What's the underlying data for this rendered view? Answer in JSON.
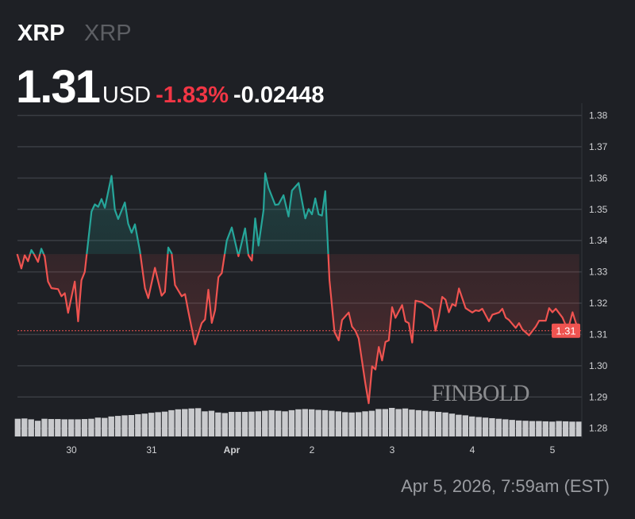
{
  "header": {
    "symbol": "XRP",
    "name": "XRP",
    "price": "1.31",
    "currency": "USD",
    "change_percent": "-1.83%",
    "change_value": "-0.02448"
  },
  "timestamp": "Apr 5, 2026, 7:59am (EST)",
  "watermark": "FINBOLD",
  "colors": {
    "up": "#26a69a",
    "down": "#ef5350",
    "negative_text": "#f23645",
    "background": "#1e2025"
  },
  "chart_data": {
    "type": "line",
    "baseline_price": 1.3357,
    "current_price": 1.3112,
    "current_price_label": "1.31",
    "ylim": [
      1.28,
      1.38
    ],
    "y_ticks": [
      "1.28",
      "1.29",
      "1.30",
      "1.31",
      "1.32",
      "1.33",
      "1.34",
      "1.35",
      "1.36",
      "1.37",
      "1.38"
    ],
    "y_tick_values": [
      1.28,
      1.29,
      1.3,
      1.31,
      1.32,
      1.33,
      1.34,
      1.35,
      1.36,
      1.37,
      1.38
    ],
    "x_ticks": [
      {
        "label": "30",
        "date": "2026-03-30T00:00"
      },
      {
        "label": "31",
        "date": "2026-03-31T00:00"
      },
      {
        "label": "Apr",
        "date": "2026-04-01T00:00"
      },
      {
        "label": "2",
        "date": "2026-04-02T00:00"
      },
      {
        "label": "3",
        "date": "2026-04-03T00:00"
      },
      {
        "label": "4",
        "date": "2026-04-04T00:00"
      },
      {
        "label": "5",
        "date": "2026-04-05T00:00"
      }
    ],
    "grid": true,
    "x": [
      "2026-03-29T07:45",
      "2026-03-29T09:00",
      "2026-03-29T10:00",
      "2026-03-29T11:00",
      "2026-03-29T12:00",
      "2026-03-29T12:45",
      "2026-03-29T14:00",
      "2026-03-29T15:00",
      "2026-03-29T16:00",
      "2026-03-29T17:00",
      "2026-03-29T18:00",
      "2026-03-29T20:00",
      "2026-03-29T21:00",
      "2026-03-29T22:00",
      "2026-03-29T23:00",
      "2026-03-30T01:00",
      "2026-03-30T02:00",
      "2026-03-30T03:00",
      "2026-03-30T04:00",
      "2026-03-30T06:00",
      "2026-03-30T07:00",
      "2026-03-30T08:00",
      "2026-03-30T09:00",
      "2026-03-30T10:00",
      "2026-03-30T12:00",
      "2026-03-30T13:00",
      "2026-03-30T14:00",
      "2026-03-30T16:00",
      "2026-03-30T17:00",
      "2026-03-30T18:00",
      "2026-03-30T19:00",
      "2026-03-30T20:30",
      "2026-03-30T22:00",
      "2026-03-30T23:00",
      "2026-03-31T01:00",
      "2026-03-31T03:00",
      "2026-03-31T04:00",
      "2026-03-31T05:00",
      "2026-03-31T06:00",
      "2026-03-31T07:00",
      "2026-03-31T09:00",
      "2026-03-31T10:00",
      "2026-03-31T11:00",
      "2026-03-31T13:00",
      "2026-03-31T15:00",
      "2026-03-31T16:00",
      "2026-03-31T17:00",
      "2026-03-31T18:00",
      "2026-03-31T19:00",
      "2026-03-31T20:00",
      "2026-03-31T21:00",
      "2026-03-31T22:30",
      "2026-04-01T00:00",
      "2026-04-01T02:00",
      "2026-04-01T04:00",
      "2026-04-01T05:00",
      "2026-04-01T06:00",
      "2026-04-01T07:00",
      "2026-04-01T08:00",
      "2026-04-01T09:30",
      "2026-04-01T10:00",
      "2026-04-01T11:00",
      "2026-04-01T13:00",
      "2026-04-01T14:00",
      "2026-04-01T15:30",
      "2026-04-01T17:00",
      "2026-04-01T18:00",
      "2026-04-01T20:00",
      "2026-04-01T22:00",
      "2026-04-01T23:00",
      "2026-04-02T00:00",
      "2026-04-02T01:00",
      "2026-04-02T02:00",
      "2026-04-02T03:00",
      "2026-04-02T04:00",
      "2026-04-02T05:15",
      "2026-04-02T06:45",
      "2026-04-02T08:00",
      "2026-04-02T09:00",
      "2026-04-02T11:00",
      "2026-04-02T12:00",
      "2026-04-02T13:00",
      "2026-04-02T14:00",
      "2026-04-02T16:00",
      "2026-04-02T17:00",
      "2026-04-02T18:00",
      "2026-04-02T19:00",
      "2026-04-02T20:00",
      "2026-04-02T21:00",
      "2026-04-02T22:00",
      "2026-04-02T23:00",
      "2026-04-03T00:00",
      "2026-04-03T01:00",
      "2026-04-03T03:00",
      "2026-04-03T04:00",
      "2026-04-03T05:00",
      "2026-04-03T06:00",
      "2026-04-03T07:00",
      "2026-04-03T09:00",
      "2026-04-03T12:00",
      "2026-04-03T13:00",
      "2026-04-03T14:00",
      "2026-04-03T15:00",
      "2026-04-03T16:00",
      "2026-04-03T17:00",
      "2026-04-03T18:00",
      "2026-04-03T19:00",
      "2026-04-03T20:00",
      "2026-04-03T22:00",
      "2026-04-04T00:00",
      "2026-04-04T01:00",
      "2026-04-04T02:00",
      "2026-04-04T03:00",
      "2026-04-04T05:00",
      "2026-04-04T06:00",
      "2026-04-04T08:00",
      "2026-04-04T09:00",
      "2026-04-04T10:00",
      "2026-04-04T11:00",
      "2026-04-04T13:00",
      "2026-04-04T14:00",
      "2026-04-04T15:00",
      "2026-04-04T17:00",
      "2026-04-04T19:00",
      "2026-04-04T20:00",
      "2026-04-04T22:00",
      "2026-04-04T23:00",
      "2026-04-05T00:00",
      "2026-04-05T01:00",
      "2026-04-05T03:00",
      "2026-04-05T04:00",
      "2026-04-05T05:00",
      "2026-04-05T06:00",
      "2026-04-05T07:00",
      "2026-04-05T08:00"
    ],
    "values": [
      1.3357,
      1.3311,
      1.3353,
      1.3334,
      1.337,
      1.3357,
      1.3332,
      1.3374,
      1.3349,
      1.3269,
      1.3248,
      1.3245,
      1.3222,
      1.3232,
      1.3169,
      1.3269,
      1.3142,
      1.3273,
      1.33,
      1.3493,
      1.3516,
      1.3508,
      1.3533,
      1.3505,
      1.3607,
      1.3499,
      1.3469,
      1.3522,
      1.3454,
      1.3425,
      1.3452,
      1.3366,
      1.3248,
      1.3216,
      1.3313,
      1.3224,
      1.3236,
      1.3378,
      1.3359,
      1.3258,
      1.3222,
      1.3229,
      1.3173,
      1.3068,
      1.3136,
      1.3148,
      1.3243,
      1.3137,
      1.3178,
      1.3283,
      1.3296,
      1.34,
      1.3442,
      1.335,
      1.3439,
      1.3353,
      1.3336,
      1.3471,
      1.3384,
      1.3497,
      1.3615,
      1.3569,
      1.3514,
      1.3516,
      1.3545,
      1.3477,
      1.356,
      1.3584,
      1.3471,
      1.3501,
      1.3484,
      1.3535,
      1.3484,
      1.348,
      1.3558,
      1.3273,
      1.3108,
      1.3081,
      1.3146,
      1.317,
      1.3125,
      1.3112,
      1.3087,
      1.2943,
      1.288,
      1.2998,
      1.2988,
      1.306,
      1.3017,
      1.3076,
      1.3081,
      1.3187,
      1.3153,
      1.3194,
      1.3142,
      1.3136,
      1.3074,
      1.3208,
      1.3203,
      1.318,
      1.3112,
      1.3159,
      1.322,
      1.3211,
      1.3171,
      1.3197,
      1.3191,
      1.3247,
      1.3184,
      1.317,
      1.3177,
      1.3175,
      1.3182,
      1.3142,
      1.3163,
      1.317,
      1.3182,
      1.3154,
      1.3146,
      1.3121,
      1.3136,
      1.3116,
      1.3097,
      1.3125,
      1.3144,
      1.3144,
      1.3184,
      1.3171,
      1.3182,
      1.3154,
      1.3129,
      1.3129,
      1.3171,
      1.3137,
      1.3116
    ],
    "volume": {
      "interval_hours": 2,
      "first": "2026-03-29T08:00",
      "relative_values": [
        62,
        63,
        60,
        55,
        62,
        61,
        61,
        60,
        60,
        60,
        61,
        62,
        66,
        65,
        70,
        72,
        74,
        75,
        78,
        80,
        83,
        85,
        87,
        92,
        95,
        96,
        98,
        99,
        88,
        90,
        84,
        82,
        86,
        86,
        86,
        87,
        88,
        90,
        92,
        90,
        88,
        92,
        95,
        96,
        95,
        93,
        92,
        90,
        88,
        85,
        84,
        85,
        88,
        90,
        96,
        96,
        100,
        96,
        98,
        94,
        92,
        90,
        88,
        86,
        84,
        80,
        76,
        74,
        70,
        68,
        66,
        64,
        62,
        60,
        58,
        56,
        55,
        54,
        54,
        53,
        52,
        54,
        53,
        52,
        52
      ]
    }
  }
}
